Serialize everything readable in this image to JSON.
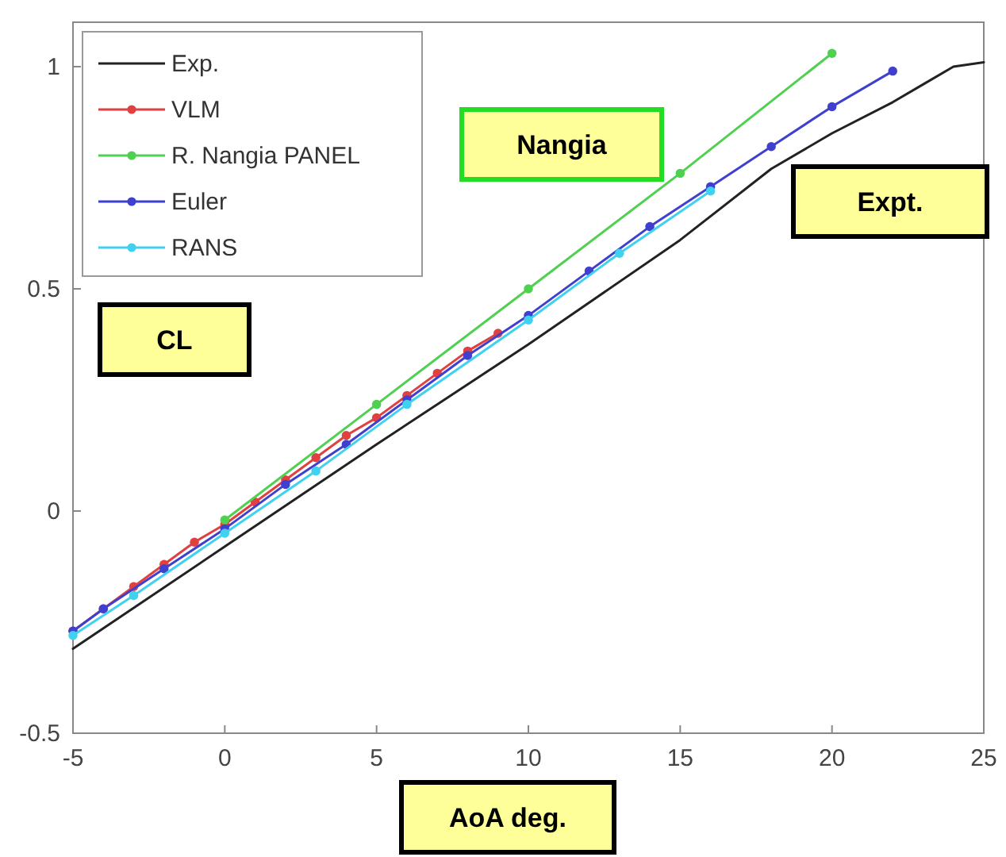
{
  "chart_data": {
    "type": "line",
    "xlabel": "AoA deg.",
    "ylabel": "CL",
    "xlim": [
      -5,
      25
    ],
    "xticks": [
      -5,
      0,
      5,
      10,
      15,
      20,
      25
    ],
    "ylim": [
      -0.5,
      1.1
    ],
    "yticks": [
      -0.5,
      0,
      0.5,
      1
    ],
    "grid": false,
    "legend": "top left",
    "annotations": [
      "Nangia",
      "Expt."
    ],
    "series": [
      {
        "name": "Exp.",
        "color": "#222222",
        "marker": "none",
        "x": [
          -5,
          0,
          5,
          10,
          15,
          18,
          20,
          22,
          23,
          24,
          25
        ],
        "values": [
          -0.31,
          -0.08,
          0.15,
          0.375,
          0.61,
          0.77,
          0.85,
          0.92,
          0.96,
          1.0,
          1.01
        ]
      },
      {
        "name": "VLM",
        "color": "#e04040",
        "marker": "circle",
        "x": [
          -5,
          -4,
          -3,
          -2,
          -1,
          0,
          1,
          2,
          3,
          4,
          5,
          6,
          7,
          8,
          9
        ],
        "values": [
          -0.27,
          -0.22,
          -0.17,
          -0.12,
          -0.07,
          -0.03,
          0.02,
          0.07,
          0.12,
          0.17,
          0.21,
          0.26,
          0.31,
          0.36,
          0.4
        ]
      },
      {
        "name": "R. Nangia PANEL",
        "color": "#50d050",
        "marker": "circle",
        "x": [
          0,
          5,
          10,
          15,
          20
        ],
        "values": [
          -0.02,
          0.24,
          0.5,
          0.76,
          1.03
        ]
      },
      {
        "name": "Euler",
        "color": "#4040d0",
        "marker": "circle",
        "x": [
          -5,
          -4,
          -2,
          0,
          2,
          4,
          6,
          8,
          10,
          12,
          14,
          16,
          18,
          20,
          22
        ],
        "values": [
          -0.27,
          -0.22,
          -0.13,
          -0.04,
          0.06,
          0.15,
          0.25,
          0.35,
          0.44,
          0.54,
          0.64,
          0.73,
          0.82,
          0.91,
          0.99
        ]
      },
      {
        "name": "RANS",
        "color": "#40d0f0",
        "marker": "circle",
        "x": [
          -5,
          -3,
          0,
          3,
          6,
          10,
          13,
          16
        ],
        "values": [
          -0.28,
          -0.19,
          -0.05,
          0.09,
          0.24,
          0.43,
          0.58,
          0.72
        ]
      }
    ]
  }
}
